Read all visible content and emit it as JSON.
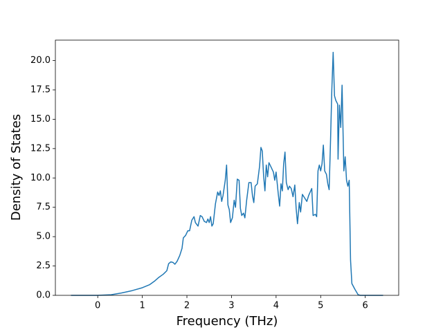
{
  "chart_data": {
    "type": "line",
    "xlabel": "Frequency (THz)",
    "ylabel": "Density of States",
    "x": [
      -0.6,
      0,
      0.3,
      0.53,
      0.77,
      1.0,
      1.16,
      1.27,
      1.36,
      1.47,
      1.55,
      1.59,
      1.64,
      1.69,
      1.73,
      1.78,
      1.84,
      1.89,
      1.92,
      1.97,
      2.02,
      2.06,
      2.11,
      2.16,
      2.19,
      2.25,
      2.3,
      2.34,
      2.39,
      2.44,
      2.47,
      2.5,
      2.53,
      2.56,
      2.59,
      2.64,
      2.69,
      2.72,
      2.75,
      2.78,
      2.81,
      2.86,
      2.89,
      2.92,
      2.95,
      2.98,
      3.02,
      3.06,
      3.09,
      3.13,
      3.17,
      3.2,
      3.23,
      3.27,
      3.3,
      3.34,
      3.39,
      3.44,
      3.47,
      3.5,
      3.53,
      3.58,
      3.63,
      3.66,
      3.69,
      3.72,
      3.75,
      3.78,
      3.81,
      3.84,
      3.89,
      3.94,
      3.97,
      4.0,
      4.05,
      4.08,
      4.11,
      4.14,
      4.17,
      4.2,
      4.23,
      4.27,
      4.3,
      4.34,
      4.38,
      4.42,
      4.45,
      4.48,
      4.52,
      4.55,
      4.59,
      4.64,
      4.69,
      4.73,
      4.8,
      4.83,
      4.88,
      4.91,
      4.94,
      4.97,
      5.0,
      5.03,
      5.06,
      5.09,
      5.13,
      5.16,
      5.19,
      5.22,
      5.25,
      5.28,
      5.31,
      5.34,
      5.38,
      5.39,
      5.42,
      5.45,
      5.48,
      5.52,
      5.55,
      5.58,
      5.61,
      5.64,
      5.67,
      5.7,
      5.77,
      5.84,
      5.89,
      6.4
    ],
    "series": [
      {
        "name": "DOS",
        "color": "#1f77b4",
        "values": [
          0,
          0,
          0.05,
          0.2,
          0.4,
          0.65,
          0.9,
          1.2,
          1.5,
          1.8,
          2.1,
          2.7,
          2.85,
          2.8,
          2.65,
          2.9,
          3.4,
          4.0,
          4.9,
          5.1,
          5.5,
          5.5,
          6.4,
          6.7,
          6.2,
          5.9,
          6.8,
          6.7,
          6.3,
          6.2,
          6.5,
          6.2,
          6.7,
          5.9,
          6.1,
          7.8,
          8.8,
          8.5,
          8.9,
          8.0,
          8.5,
          9.8,
          11.1,
          7.7,
          7.3,
          6.2,
          6.6,
          8.1,
          7.5,
          9.9,
          9.8,
          7.4,
          6.8,
          7.0,
          6.6,
          8.1,
          9.6,
          9.6,
          8.5,
          7.9,
          9.3,
          9.5,
          11.0,
          12.6,
          12.3,
          10.2,
          8.9,
          11.1,
          10.1,
          11.3,
          10.9,
          10.5,
          9.8,
          10.5,
          8.6,
          7.6,
          9.5,
          8.9,
          11.2,
          12.2,
          9.6,
          9.0,
          9.3,
          9.1,
          8.4,
          9.4,
          7.4,
          6.1,
          7.9,
          7.1,
          8.6,
          8.3,
          8.0,
          8.5,
          9.1,
          6.8,
          6.9,
          6.7,
          10.6,
          11.1,
          10.6,
          11.2,
          12.8,
          10.6,
          10.3,
          9.5,
          9.0,
          13.0,
          17.5,
          20.7,
          17.0,
          16.6,
          16.3,
          11.6,
          16.2,
          14.3,
          17.9,
          10.6,
          11.8,
          9.8,
          9.3,
          9.8,
          3.0,
          1.0,
          0.5,
          0.05,
          0,
          0
        ]
      }
    ],
    "xlim": [
      -0.95,
      6.75
    ],
    "xticks": [
      0,
      1,
      2,
      3,
      4,
      5,
      6
    ],
    "ylim": [
      0,
      21.74
    ],
    "yticks": [
      {
        "value": 0,
        "label": "0.0"
      },
      {
        "value": 2.5,
        "label": "2.5"
      },
      {
        "value": 5,
        "label": "5.0"
      },
      {
        "value": 7.5,
        "label": "7.5"
      },
      {
        "value": 10,
        "label": "10.0"
      },
      {
        "value": 12.5,
        "label": "12.5"
      },
      {
        "value": 15,
        "label": "15.0"
      },
      {
        "value": 17.5,
        "label": "17.5"
      },
      {
        "value": 20,
        "label": "20.0"
      }
    ],
    "grid": false
  }
}
